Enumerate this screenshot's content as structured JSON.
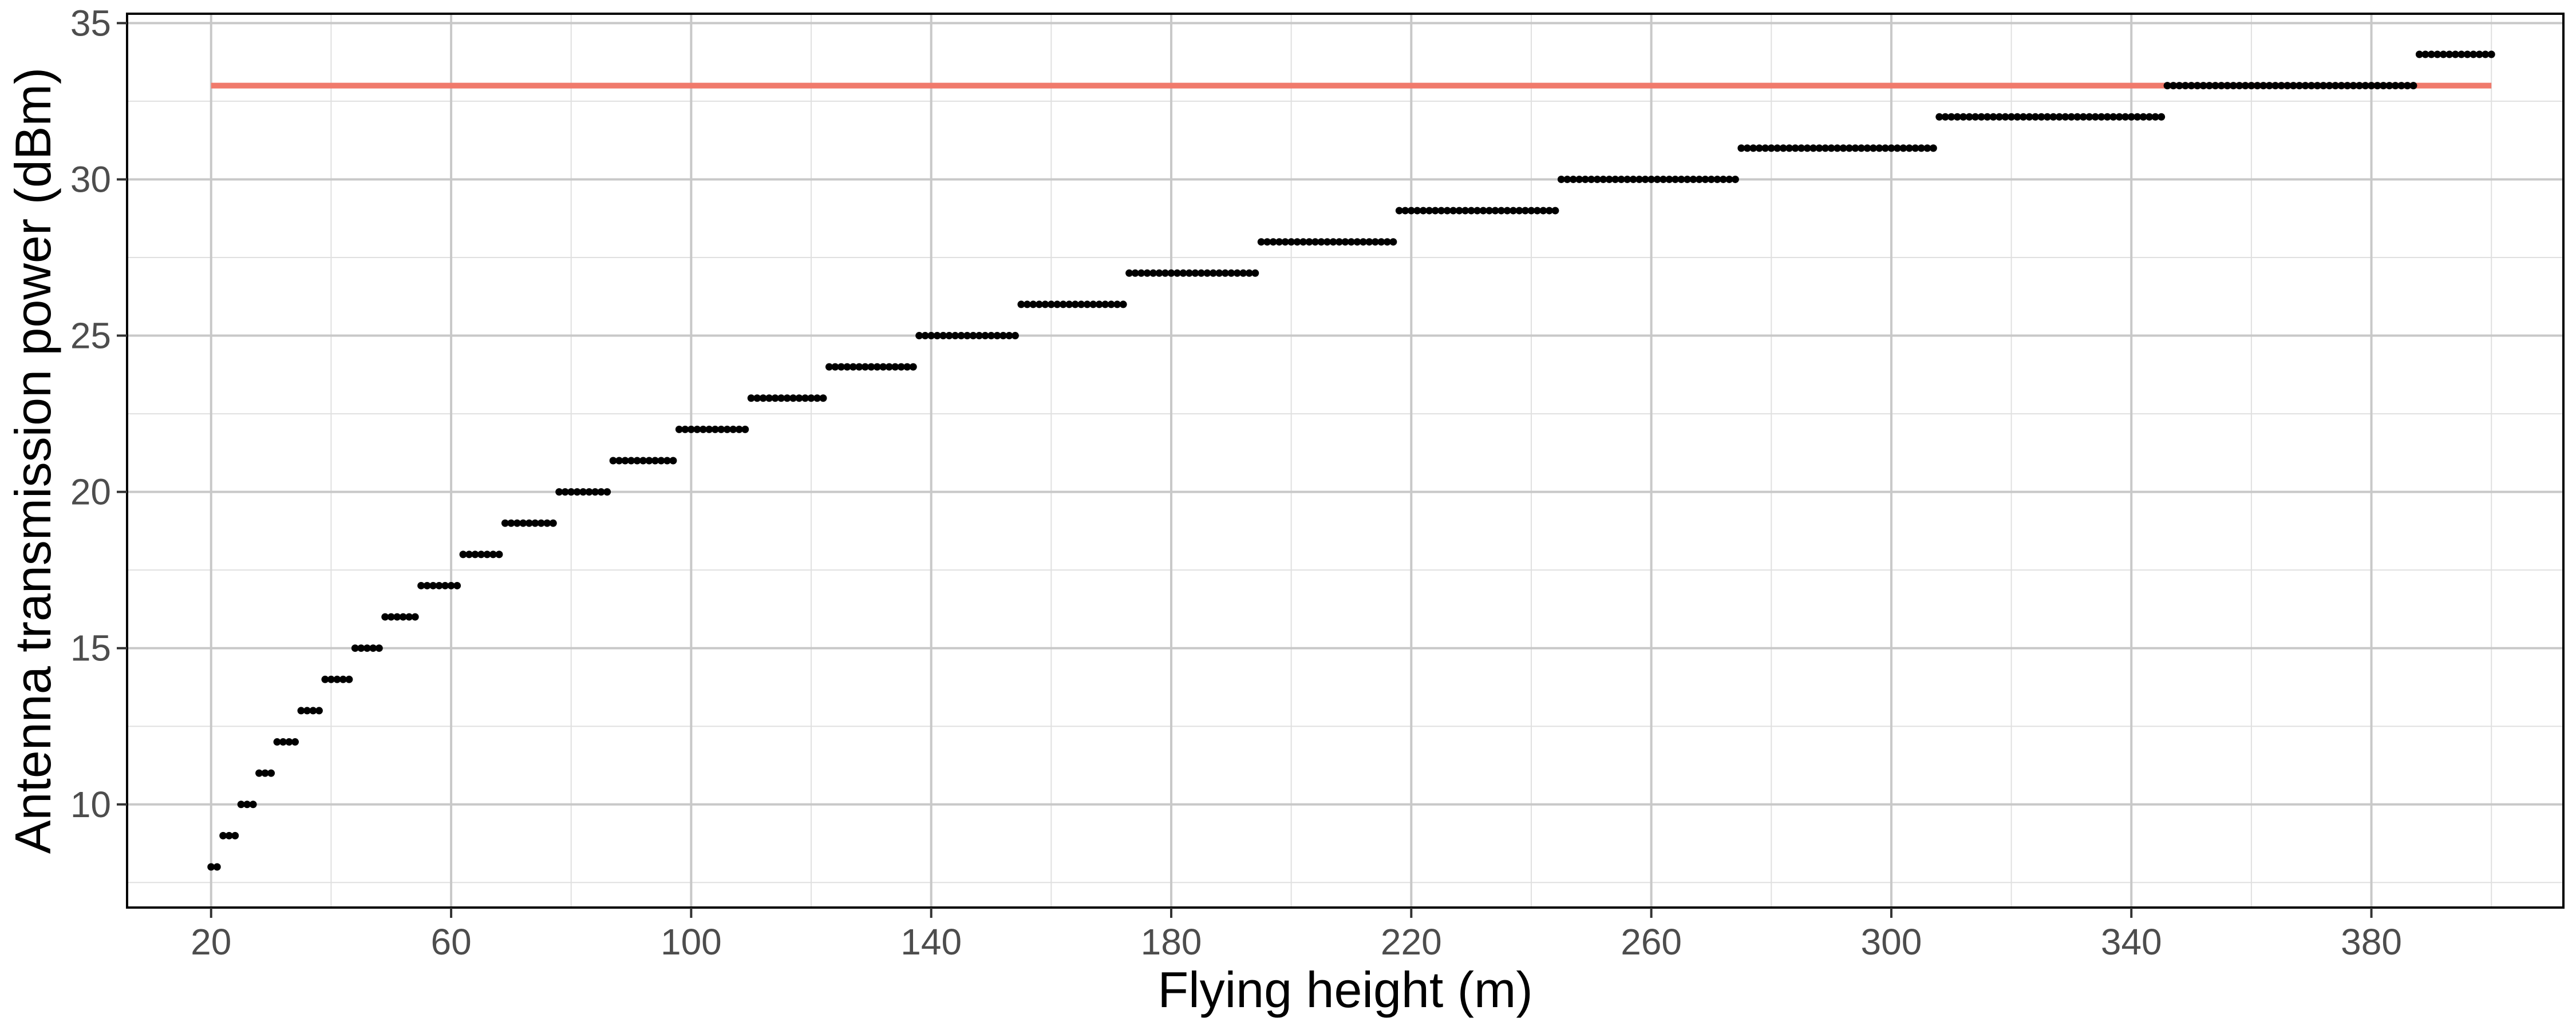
{
  "chart_data": {
    "type": "scatter",
    "xlabel": "Flying height (m)",
    "ylabel": "Antenna transmission power (dBm)",
    "xlim": [
      6,
      412
    ],
    "ylim": [
      6.7,
      35.3
    ],
    "xticks": [
      20,
      60,
      100,
      140,
      180,
      220,
      260,
      300,
      340,
      380
    ],
    "yticks": [
      10,
      15,
      20,
      25,
      30,
      35
    ],
    "grid": true,
    "reference_line": {
      "y": 33,
      "x_range": [
        20,
        400
      ],
      "color": "#f07a6c"
    },
    "point_color": "#000000",
    "steps": [
      {
        "x_start": 20,
        "x_end": 21,
        "y": 8
      },
      {
        "x_start": 22,
        "x_end": 24,
        "y": 9
      },
      {
        "x_start": 25,
        "x_end": 27,
        "y": 10
      },
      {
        "x_start": 28,
        "x_end": 30,
        "y": 11
      },
      {
        "x_start": 31,
        "x_end": 34,
        "y": 12
      },
      {
        "x_start": 35,
        "x_end": 38,
        "y": 13
      },
      {
        "x_start": 39,
        "x_end": 43,
        "y": 14
      },
      {
        "x_start": 44,
        "x_end": 48,
        "y": 15
      },
      {
        "x_start": 49,
        "x_end": 54,
        "y": 16
      },
      {
        "x_start": 55,
        "x_end": 61,
        "y": 17
      },
      {
        "x_start": 62,
        "x_end": 68,
        "y": 18
      },
      {
        "x_start": 69,
        "x_end": 77,
        "y": 19
      },
      {
        "x_start": 78,
        "x_end": 86,
        "y": 20
      },
      {
        "x_start": 87,
        "x_end": 97,
        "y": 21
      },
      {
        "x_start": 98,
        "x_end": 109,
        "y": 22
      },
      {
        "x_start": 110,
        "x_end": 122,
        "y": 23
      },
      {
        "x_start": 123,
        "x_end": 137,
        "y": 24
      },
      {
        "x_start": 138,
        "x_end": 154,
        "y": 25
      },
      {
        "x_start": 155,
        "x_end": 172,
        "y": 26
      },
      {
        "x_start": 173,
        "x_end": 194,
        "y": 27
      },
      {
        "x_start": 195,
        "x_end": 217,
        "y": 28
      },
      {
        "x_start": 218,
        "x_end": 244,
        "y": 29
      },
      {
        "x_start": 245,
        "x_end": 274,
        "y": 30
      },
      {
        "x_start": 275,
        "x_end": 307,
        "y": 31
      },
      {
        "x_start": 308,
        "x_end": 345,
        "y": 32
      },
      {
        "x_start": 346,
        "x_end": 387,
        "y": 33
      },
      {
        "x_start": 388,
        "x_end": 400,
        "y": 34
      }
    ]
  }
}
